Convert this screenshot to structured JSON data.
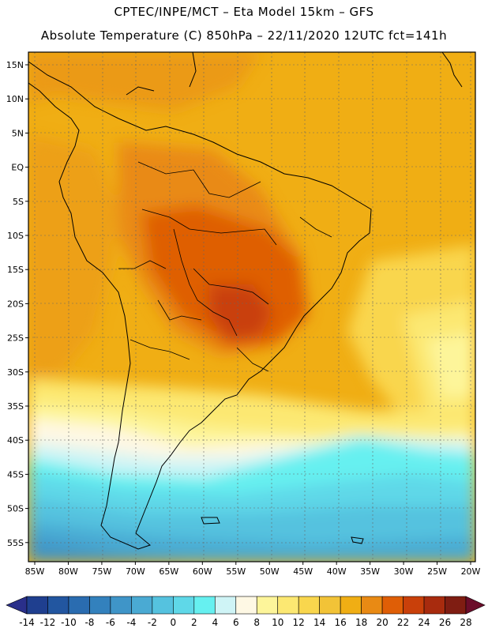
{
  "title": {
    "line1": "CPTEC/INPE/MCT –  Eta Model 15km – GFS",
    "line2": "Absolute Temperature (C) 850hPa – 22/11/2020 12UTC fct=141h"
  },
  "lat_labels": [
    "15N",
    "10N",
    "5N",
    "EQ",
    "5S",
    "10S",
    "15S",
    "20S",
    "25S",
    "30S",
    "35S",
    "40S",
    "45S",
    "50S",
    "55S"
  ],
  "lon_labels": [
    "85W",
    "80W",
    "75W",
    "70W",
    "65W",
    "60W",
    "55W",
    "50W",
    "45W",
    "40W",
    "35W",
    "30W",
    "25W",
    "20W"
  ],
  "colorbar": {
    "ticks": [
      "-14",
      "-12",
      "-10",
      "-8",
      "-6",
      "-4",
      "-2",
      "0",
      "2",
      "4",
      "6",
      "8",
      "10",
      "12",
      "14",
      "16",
      "18",
      "20",
      "22",
      "24",
      "26",
      "28"
    ],
    "colors": [
      "#1f3f8f",
      "#2256a0",
      "#2a6cb0",
      "#3381bd",
      "#3f95c8",
      "#4aaad3",
      "#55c2df",
      "#5fd8e8",
      "#66f0f0",
      "#cff4f6",
      "#fef8e4",
      "#fdf59a",
      "#fce872",
      "#f9d64d",
      "#f2c337",
      "#f0ae14",
      "#e98a14",
      "#df5e06",
      "#c9400a",
      "#a82b0e",
      "#7f1d12"
    ],
    "low_color": "#2a2f8a",
    "high_color": "#6b0d2a"
  }
}
